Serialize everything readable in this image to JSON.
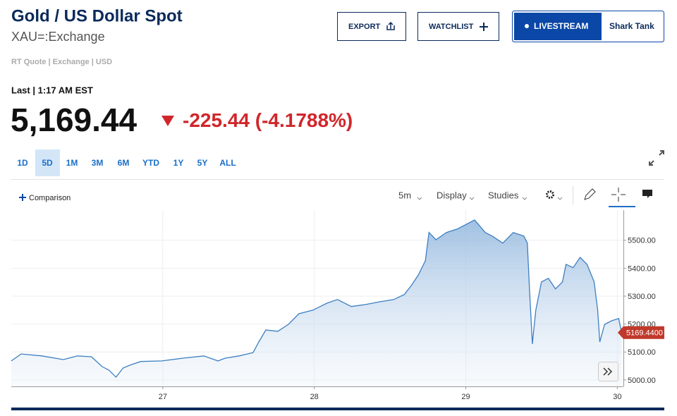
{
  "header": {
    "title": "Gold / US Dollar Spot",
    "symbol": "XAU=:Exchange",
    "meta": "RT Quote | Exchange | USD"
  },
  "buttons": {
    "export": "EXPORT",
    "watchlist": "WATCHLIST",
    "livestream": "LIVESTREAM",
    "show": "Shark Tank"
  },
  "quote": {
    "last_label": "Last | 1:17 AM EST",
    "price": "5,169.44",
    "change": "-225.44",
    "change_pct": "(-4.1788%)"
  },
  "ranges": [
    "1D",
    "5D",
    "1M",
    "3M",
    "6M",
    "YTD",
    "1Y",
    "5Y",
    "ALL"
  ],
  "toolbar": {
    "comparison": "Comparison",
    "interval": "5m",
    "display": "Display",
    "studies": "Studies"
  },
  "chart_data": {
    "type": "line",
    "color": "#3d7fc1",
    "grid": true,
    "x": [
      26.0,
      26.065,
      26.204,
      26.343,
      26.436,
      26.529,
      26.599,
      26.645,
      26.691,
      26.738,
      26.784,
      26.854,
      26.993,
      27.132,
      27.271,
      27.364,
      27.411,
      27.503,
      27.596,
      27.633,
      27.68,
      27.759,
      27.829,
      27.898,
      27.991,
      28.084,
      28.153,
      28.244,
      28.339,
      28.432,
      28.524,
      28.594,
      28.64,
      28.687,
      28.733,
      28.757,
      28.803,
      28.872,
      28.942,
      28.988,
      29.058,
      29.128,
      29.174,
      29.244,
      29.313,
      29.383,
      29.406,
      29.42,
      29.439,
      29.462,
      29.499,
      29.545,
      29.592,
      29.638,
      29.661,
      29.708,
      29.754,
      29.8,
      29.847,
      29.87,
      29.884,
      29.916,
      29.963,
      30.009,
      30.028
    ],
    "values": [
      5068,
      5093,
      5086,
      5073,
      5086,
      5083,
      5048,
      5035,
      5010,
      5043,
      5053,
      5066,
      5068,
      5078,
      5086,
      5068,
      5078,
      5086,
      5098,
      5136,
      5179,
      5174,
      5199,
      5237,
      5250,
      5275,
      5288,
      5263,
      5270,
      5280,
      5288,
      5306,
      5338,
      5376,
      5427,
      5528,
      5502,
      5528,
      5540,
      5553,
      5573,
      5528,
      5515,
      5490,
      5528,
      5515,
      5490,
      5326,
      5129,
      5250,
      5351,
      5364,
      5326,
      5351,
      5414,
      5402,
      5439,
      5414,
      5351,
      5250,
      5136,
      5199,
      5212,
      5220,
      5169.44
    ],
    "last_price": {
      "value": 5169.44,
      "label": "5169.4400"
    },
    "xlim": [
      26.0,
      30.04
    ],
    "xticks": [
      27,
      28,
      29,
      30
    ],
    "ylim": [
      4977,
      5608
    ],
    "yticks": [
      {
        "value": 5000,
        "label": "5000.00"
      },
      {
        "value": 5100,
        "label": "5100.00"
      },
      {
        "value": 5200,
        "label": "5200.00"
      },
      {
        "value": 5300,
        "label": "5300.00"
      },
      {
        "value": 5400,
        "label": "5400.00"
      },
      {
        "value": 5500,
        "label": "5500.00"
      }
    ]
  }
}
